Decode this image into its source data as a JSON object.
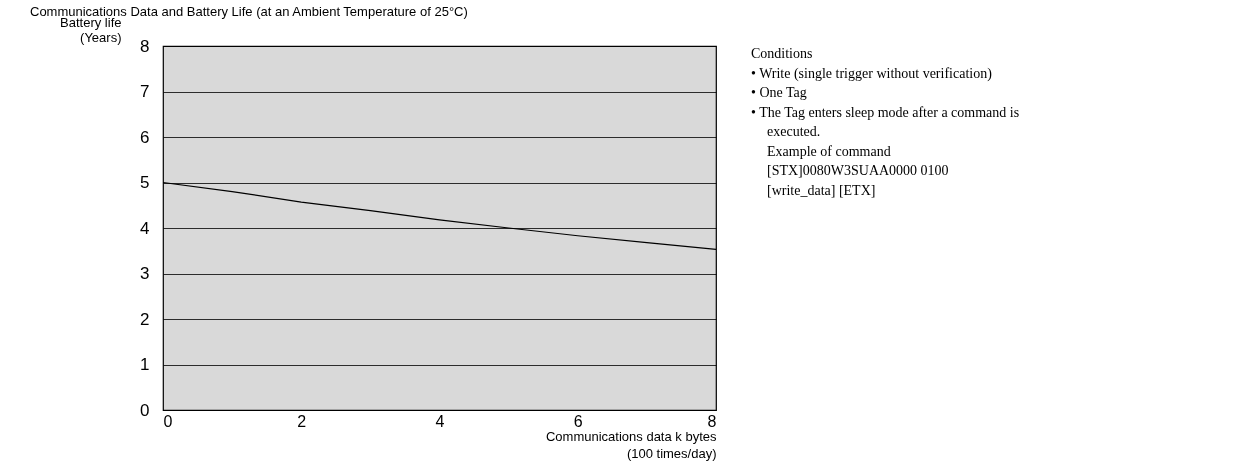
{
  "chart_data": {
    "type": "line",
    "title": "Communications Data and Battery Life (at an Ambient Temperature of 25°C)",
    "xlabel": "Communications data k bytes\n(100 times/day)",
    "ylabel": "Battery life\n(Years)",
    "x": [
      0,
      1,
      2,
      3,
      4,
      5,
      6,
      7,
      8
    ],
    "series": [
      {
        "color": "#000000",
        "values": [
          5.0,
          4.8,
          4.57,
          4.38,
          4.18,
          4.0,
          3.83,
          3.68,
          3.53
        ]
      }
    ],
    "xlim": [
      0,
      8
    ],
    "xticks": [
      0,
      2,
      4,
      6,
      8
    ],
    "ylim": [
      0,
      8
    ],
    "yticks": [
      0,
      1,
      2,
      3,
      4,
      5,
      6,
      7,
      8
    ],
    "grid": "y",
    "legend": false,
    "marker": "none",
    "line_style": "solid",
    "annotations": [
      "Conditions",
      "•  Write (single trigger without verification)",
      "•  One Tag",
      "•  The Tag enters sleep mode after a command is",
      "    executed.",
      "    Example of command",
      "    [STX]0080W3SUAA0000 0100",
      "    [write_data] [ETX]"
    ]
  }
}
